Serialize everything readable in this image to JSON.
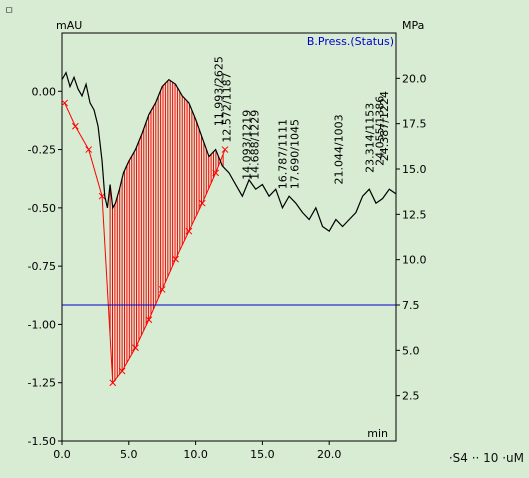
{
  "chart_data": {
    "type": "line",
    "title": "",
    "corner_mark": "ㅁ",
    "footer_text": "·S4 ·· 10 ·uM",
    "xlabel": "min",
    "ylabel_left": "mAU",
    "ylabel_right": "MPa",
    "xlim": [
      0,
      25
    ],
    "ylim_left": [
      -1.5,
      0.25
    ],
    "ylim_right": [
      0,
      22.5
    ],
    "xticks": [
      0.0,
      5.0,
      10.0,
      15.0,
      20.0
    ],
    "xtick_labels": [
      "0.0",
      "5.0",
      "10.0",
      "15.0",
      "20.0"
    ],
    "yticks_left": [
      0.0,
      -0.25,
      -0.5,
      -0.75,
      -1.0,
      -1.25,
      -1.5
    ],
    "ytick_labels_left": [
      "0.00",
      "-0.25",
      "-0.50",
      "-0.75",
      "-1.00",
      "-1.25",
      "-1.50"
    ],
    "yticks_right": [
      20.0,
      17.5,
      15.0,
      12.5,
      10.0,
      7.5,
      5.0,
      2.5
    ],
    "ytick_labels_right": [
      "20.0",
      "17.5",
      "15.0",
      "12.5",
      "10.0",
      "7.5",
      "5.0",
      "2.5"
    ],
    "grid": false,
    "legend": {
      "position": "top-right",
      "entries": [
        "B.Press.(Status)"
      ]
    },
    "colors": {
      "signal": "#000000",
      "peak_marker": "#ff0000",
      "pressure": "#0000cc",
      "frame": "#000000",
      "background": "#d7ecd3"
    },
    "series": [
      {
        "name": "",
        "axis": "left",
        "x": [
          0.0,
          0.3,
          0.6,
          0.9,
          1.2,
          1.5,
          1.8,
          2.1,
          2.4,
          2.7,
          3.0,
          3.2,
          3.4,
          3.6,
          3.8,
          4.0,
          4.3,
          4.6,
          5.0,
          5.5,
          6.0,
          6.5,
          7.0,
          7.5,
          8.0,
          8.5,
          9.0,
          9.5,
          10.0,
          10.5,
          11.0,
          11.5,
          12.0,
          12.5,
          13.0,
          13.5,
          14.0,
          14.5,
          15.0,
          15.5,
          16.0,
          16.5,
          17.0,
          17.5,
          18.0,
          18.5,
          19.0,
          19.5,
          20.0,
          20.5,
          21.0,
          21.5,
          22.0,
          22.5,
          23.0,
          23.5,
          24.0,
          24.5,
          25.0
        ],
        "y": [
          0.05,
          0.08,
          0.02,
          0.06,
          0.01,
          -0.02,
          0.03,
          -0.05,
          -0.08,
          -0.15,
          -0.3,
          -0.45,
          -0.5,
          -0.4,
          -0.5,
          -0.48,
          -0.42,
          -0.35,
          -0.3,
          -0.25,
          -0.18,
          -0.1,
          -0.05,
          0.02,
          0.05,
          0.03,
          -0.02,
          -0.05,
          -0.12,
          -0.2,
          -0.28,
          -0.25,
          -0.32,
          -0.35,
          -0.4,
          -0.45,
          -0.38,
          -0.42,
          -0.4,
          -0.45,
          -0.42,
          -0.5,
          -0.45,
          -0.48,
          -0.52,
          -0.55,
          -0.5,
          -0.58,
          -0.6,
          -0.55,
          -0.58,
          -0.55,
          -0.52,
          -0.45,
          -0.42,
          -0.48,
          -0.46,
          -0.42,
          -0.44
        ]
      },
      {
        "name": "B.Press.(Status)",
        "axis": "right",
        "x": [
          0.0,
          25.0
        ],
        "y": [
          7.5,
          7.5
        ]
      }
    ],
    "peak_baseline": {
      "axis": "left",
      "x": [
        0.2,
        1.0,
        2.0,
        3.0,
        3.8,
        4.5,
        5.5,
        6.5,
        7.5,
        8.5,
        9.5,
        10.5,
        11.5,
        12.2
      ],
      "y": [
        -0.05,
        -0.15,
        -0.25,
        -0.45,
        -1.25,
        -1.2,
        -1.1,
        -0.98,
        -0.85,
        -0.72,
        -0.6,
        -0.48,
        -0.35,
        -0.25
      ]
    },
    "peak_labels": [
      "14.093/1219",
      "14.688/1229",
      "16.787/1111",
      "17.690/1045",
      "21.044/1003",
      "23.314/1153",
      "24.055/1386",
      "24.387/1224",
      "12.572/1187",
      "11.993/2625"
    ]
  }
}
